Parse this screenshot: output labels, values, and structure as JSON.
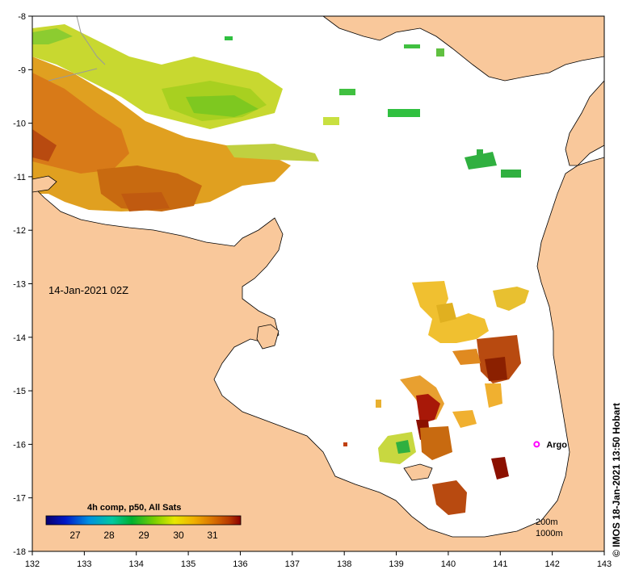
{
  "map": {
    "date_label": "14-Jan-2021 02Z",
    "credit": "© IMOS 18-Jan-2021 13:50 Hobart",
    "legend_title": "4h comp, p50, All Sats",
    "legend_ticks": [
      "27",
      "28",
      "29",
      "30",
      "31"
    ],
    "contours": [
      "200m",
      "1000m"
    ],
    "argo_label": "Argo",
    "argo_position": {
      "lon": 141.7,
      "lat": -16.0
    },
    "x_ticks": [
      "132",
      "133",
      "134",
      "135",
      "136",
      "137",
      "138",
      "139",
      "140",
      "141",
      "142",
      "143"
    ],
    "y_ticks": [
      "-8",
      "-9",
      "-10",
      "-11",
      "-12",
      "-13",
      "-14",
      "-15",
      "-16",
      "-17",
      "-18"
    ],
    "x_range": [
      132,
      143
    ],
    "y_range": [
      -18,
      -8
    ],
    "colors": {
      "land": "#f9c89b",
      "ocean_missing": "#ffffff",
      "argo": "#ff00ff",
      "colorbar": [
        "#08006e",
        "#0018c8",
        "#0090e0",
        "#00c8a0",
        "#00b030",
        "#7ed000",
        "#e8e800",
        "#f0b000",
        "#d87000",
        "#b83a00",
        "#8b0000"
      ]
    }
  }
}
